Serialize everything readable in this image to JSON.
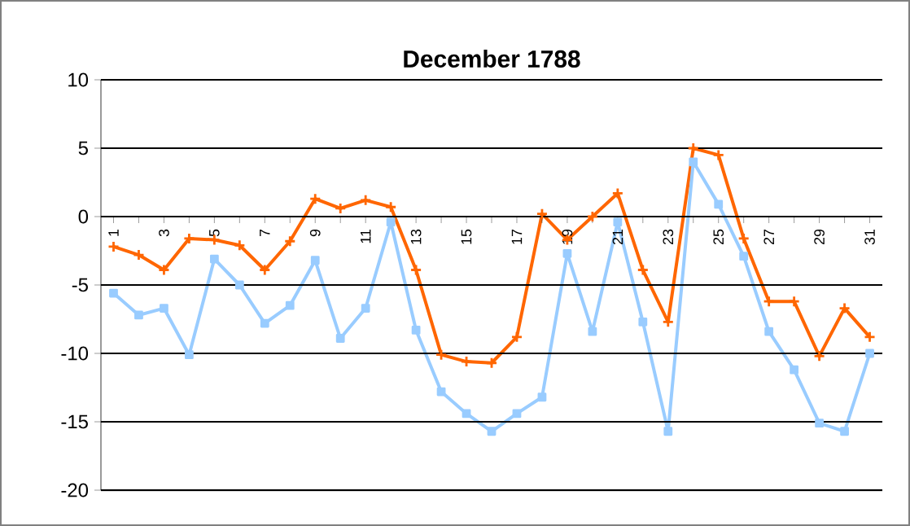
{
  "chart_data": {
    "type": "line",
    "title": "December 1788",
    "categories": [
      "1",
      null,
      "3",
      null,
      "5",
      null,
      "7",
      null,
      "9",
      null,
      "11",
      null,
      "13",
      null,
      "15",
      null,
      "17",
      null,
      "19",
      null,
      "21",
      null,
      "23",
      null,
      "25",
      null,
      "27",
      null,
      "29",
      null,
      "31"
    ],
    "series": [
      {
        "color": "#ff6600",
        "marker": "cross",
        "values": [
          -2.2,
          -2.8,
          -3.9,
          -1.6,
          -1.7,
          -2.1,
          -3.9,
          -1.8,
          1.3,
          0.6,
          1.2,
          0.7,
          -3.9,
          -10.1,
          -10.6,
          -10.7,
          -8.8,
          0.2,
          -1.7,
          0,
          1.7,
          -3.9,
          -7.7,
          5.0,
          4.5,
          -1.6,
          -6.2,
          -6.2,
          -10.2,
          -6.7,
          -8.8
        ]
      },
      {
        "color": "#99ccff",
        "marker": "square",
        "values": [
          -5.6,
          -7.2,
          -6.7,
          -10.1,
          -3.1,
          -5.0,
          -7.8,
          -6.5,
          -3.2,
          -8.9,
          -6.7,
          -0.4,
          -8.3,
          -12.8,
          -14.4,
          -15.7,
          -14.4,
          -13.2,
          -2.7,
          -8.4,
          -0.4,
          -7.7,
          -15.7,
          4.0,
          0.9,
          -2.9,
          -8.4,
          -11.2,
          -15.1,
          -15.7,
          -10.0
        ]
      }
    ],
    "ylim": [
      -20,
      10
    ],
    "yticks": [
      -20,
      -15,
      -10,
      -5,
      0,
      5,
      10
    ],
    "grid": "y"
  }
}
